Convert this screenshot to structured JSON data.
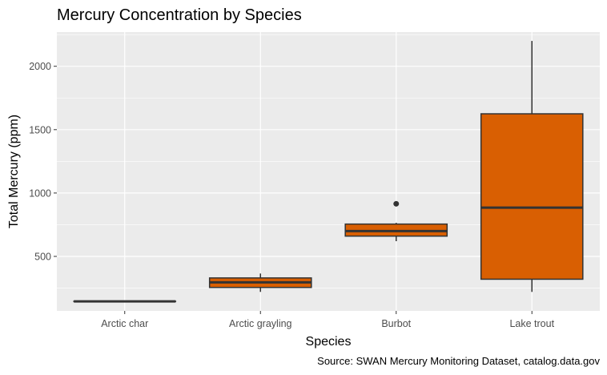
{
  "chart_data": {
    "type": "box",
    "title": "Mercury Concentration by Species",
    "xlabel": "Species",
    "ylabel": "Total Mercury (ppm)",
    "caption": "Source: SWAN Mercury Monitoring Dataset, catalog.data.gov",
    "categories": [
      "Arctic char",
      "Arctic grayling",
      "Burbot",
      "Lake trout"
    ],
    "yticks": [
      500,
      1000,
      1500,
      2000
    ],
    "ylim": [
      70,
      2270
    ],
    "grid": true,
    "legend": "none",
    "boxes": [
      {
        "category": "Arctic char",
        "whisker_low": 145,
        "q1": 145,
        "median": 145,
        "q3": 145,
        "whisker_high": 145,
        "outliers": []
      },
      {
        "category": "Arctic grayling",
        "whisker_low": 220,
        "q1": 255,
        "median": 295,
        "q3": 330,
        "whisker_high": 365,
        "outliers": []
      },
      {
        "category": "Burbot",
        "whisker_low": 620,
        "q1": 660,
        "median": 700,
        "q3": 755,
        "whisker_high": 765,
        "outliers": [
          915
        ]
      },
      {
        "category": "Lake trout",
        "whisker_low": 220,
        "q1": 320,
        "median": 885,
        "q3": 1625,
        "whisker_high": 2200,
        "outliers": []
      }
    ],
    "colors": {
      "fill": "#D95F02",
      "line": "#333333",
      "panel": "#EBEBEB",
      "grid": "#FFFFFF"
    }
  }
}
